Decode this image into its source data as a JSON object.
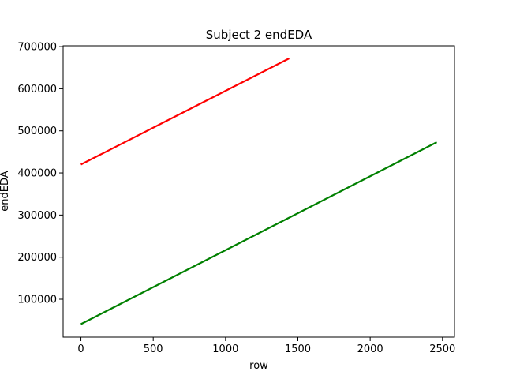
{
  "chart_data": {
    "type": "line",
    "title": "Subject 2 endEDA",
    "xlabel": "row",
    "ylabel": "endEDA",
    "xlim": [
      -123,
      2583
    ],
    "ylim": [
      10000,
      702000
    ],
    "xticks": [
      0,
      500,
      1000,
      1500,
      2000,
      2500
    ],
    "yticks": [
      100000,
      200000,
      300000,
      400000,
      500000,
      600000,
      700000
    ],
    "xtick_labels": [
      "0",
      "500",
      "1000",
      "1500",
      "2000",
      "2500"
    ],
    "ytick_labels": [
      "100000",
      "200000",
      "300000",
      "400000",
      "500000",
      "600000",
      "700000"
    ],
    "grid": false,
    "series": [
      {
        "color": "#ff0000",
        "x": [
          0,
          1440
        ],
        "y": [
          420000,
          672000
        ]
      },
      {
        "color": "#008000",
        "x": [
          0,
          2460
        ],
        "y": [
          41000,
          473000
        ]
      }
    ]
  }
}
